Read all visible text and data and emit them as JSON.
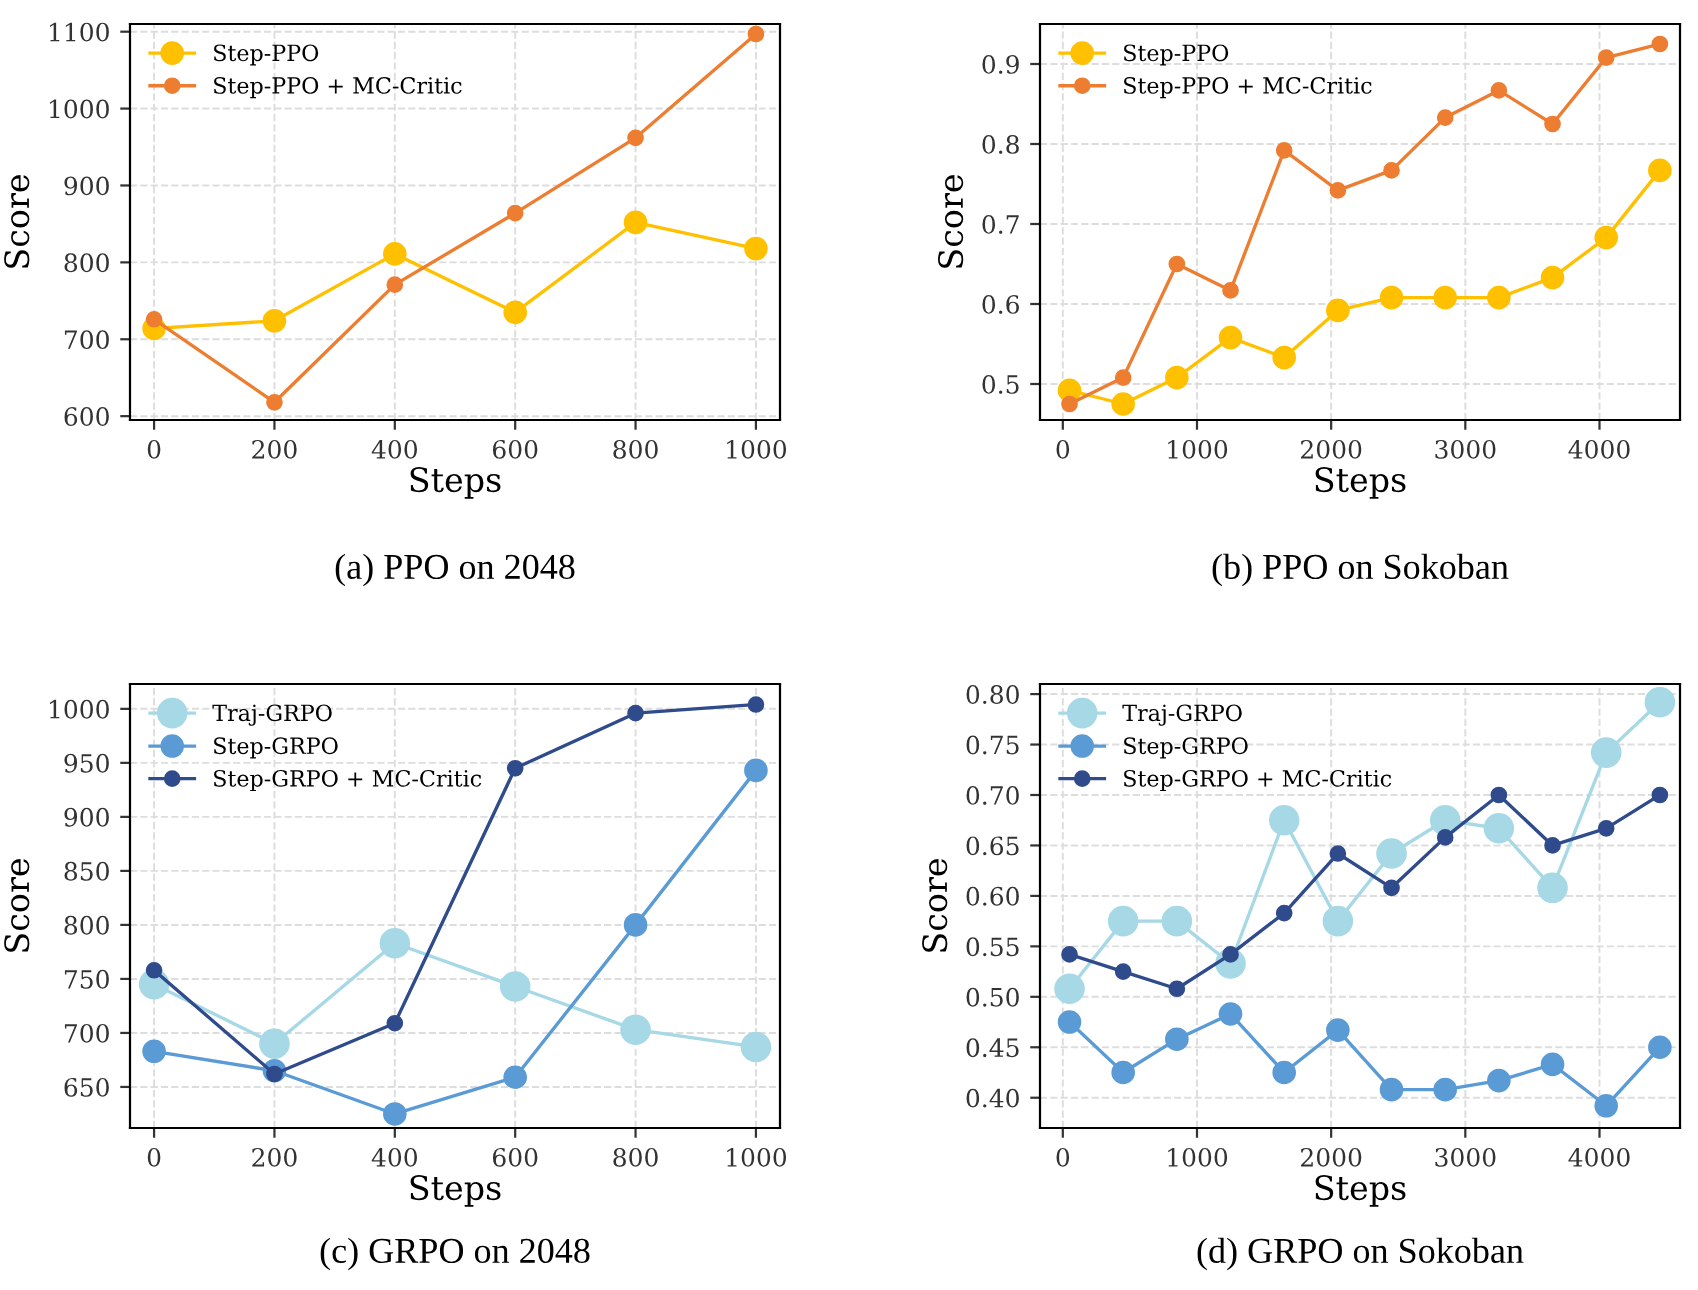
{
  "chart_data": [
    {
      "type": "line",
      "xlabel": "Steps",
      "ylabel": "Score",
      "annotations": [
        "(a) PPO on 2048"
      ],
      "x": [
        0,
        200,
        400,
        600,
        800,
        1000
      ],
      "xlim": [
        -40,
        1040
      ],
      "xticks": [
        0,
        200,
        400,
        600,
        800,
        1000
      ],
      "ylim": [
        595,
        1110
      ],
      "yticks": [
        600,
        700,
        800,
        900,
        1000,
        1100
      ],
      "grid": true,
      "legend": "top left",
      "marker": "circle",
      "line_style": "solid",
      "series": [
        {
          "name": "Step-PPO",
          "color": "#ffc000",
          "values": [
            714,
            724,
            811,
            735,
            852,
            818
          ]
        },
        {
          "name": "Step-PPO + MC-Critic",
          "color": "#ed7d31",
          "values": [
            726,
            618,
            771,
            864,
            962,
            1097
          ]
        }
      ]
    },
    {
      "type": "line",
      "xlabel": "Steps",
      "ylabel": "Score",
      "annotations": [
        "(b) PPO on Sokoban"
      ],
      "x": [
        50,
        450,
        850,
        1250,
        1650,
        2050,
        2450,
        2850,
        3250,
        3650,
        4050,
        4450
      ],
      "xlim": [
        -170,
        4600
      ],
      "xticks": [
        0,
        1000,
        2000,
        3000,
        4000
      ],
      "ylim": [
        0.455,
        0.95
      ],
      "yticks": [
        0.5,
        0.6,
        0.7,
        0.8,
        0.9
      ],
      "grid": true,
      "legend": "top left",
      "marker": "circle",
      "line_style": "solid",
      "series": [
        {
          "name": "Step-PPO",
          "color": "#ffc000",
          "values": [
            0.492,
            0.475,
            0.508,
            0.558,
            0.533,
            0.592,
            0.608,
            0.608,
            0.608,
            0.633,
            0.683,
            0.767
          ]
        },
        {
          "name": "Step-PPO + MC-Critic",
          "color": "#ed7d31",
          "values": [
            0.475,
            0.508,
            0.65,
            0.617,
            0.792,
            0.742,
            0.767,
            0.833,
            0.867,
            0.825,
            0.908,
            0.925
          ]
        }
      ]
    },
    {
      "type": "line",
      "xlabel": "Steps",
      "ylabel": "Score",
      "annotations": [
        "(c) GRPO on 2048"
      ],
      "x": [
        0,
        200,
        400,
        600,
        800,
        1000
      ],
      "xlim": [
        -40,
        1040
      ],
      "xticks": [
        0,
        200,
        400,
        600,
        800,
        1000
      ],
      "ylim": [
        612,
        1023
      ],
      "yticks": [
        650,
        700,
        750,
        800,
        850,
        900,
        950,
        1000
      ],
      "grid": true,
      "legend": "top left",
      "marker": "circle",
      "line_style": "solid",
      "series": [
        {
          "name": "Traj-GRPO",
          "color": "#a6d8e6",
          "values": [
            745,
            690,
            783,
            743,
            703,
            687
          ]
        },
        {
          "name": "Step-GRPO",
          "color": "#5b9bd5",
          "values": [
            683,
            665,
            625,
            659,
            800,
            943
          ]
        },
        {
          "name": "Step-GRPO + MC-Critic",
          "color": "#2f4b8c",
          "values": [
            758,
            662,
            709,
            945,
            996,
            1004
          ]
        }
      ]
    },
    {
      "type": "line",
      "xlabel": "Steps",
      "ylabel": "Score",
      "annotations": [
        "(d) GRPO on Sokoban"
      ],
      "x": [
        50,
        450,
        850,
        1250,
        1650,
        2050,
        2450,
        2850,
        3250,
        3650,
        4050,
        4450
      ],
      "xlim": [
        -170,
        4600
      ],
      "xticks": [
        0,
        1000,
        2000,
        3000,
        4000
      ],
      "ylim": [
        0.37,
        0.81
      ],
      "yticks": [
        {
          "value": 0.4,
          "label": "0.40"
        },
        {
          "value": 0.45,
          "label": "0.45"
        },
        {
          "value": 0.5,
          "label": "0.50"
        },
        {
          "value": 0.55,
          "label": "0.55"
        },
        {
          "value": 0.6,
          "label": "0.60"
        },
        {
          "value": 0.65,
          "label": "0.65"
        },
        {
          "value": 0.7,
          "label": "0.70"
        },
        {
          "value": 0.75,
          "label": "0.75"
        },
        {
          "value": 0.8,
          "label": "0.80"
        }
      ],
      "grid": true,
      "legend": "top left",
      "marker": "circle",
      "line_style": "solid",
      "series": [
        {
          "name": "Traj-GRPO",
          "color": "#a6d8e6",
          "values": [
            0.508,
            0.575,
            0.575,
            0.533,
            0.675,
            0.575,
            0.642,
            0.675,
            0.667,
            0.608,
            0.742,
            0.792
          ]
        },
        {
          "name": "Step-GRPO",
          "color": "#5b9bd5",
          "values": [
            0.475,
            0.425,
            0.458,
            0.483,
            0.425,
            0.467,
            0.408,
            0.408,
            0.417,
            0.433,
            0.392,
            0.45
          ]
        },
        {
          "name": "Step-GRPO + MC-Critic",
          "color": "#2f4b8c",
          "values": [
            0.542,
            0.525,
            0.508,
            0.542,
            0.583,
            0.642,
            0.608,
            0.658,
            0.7,
            0.65,
            0.667,
            0.7
          ]
        }
      ]
    }
  ]
}
